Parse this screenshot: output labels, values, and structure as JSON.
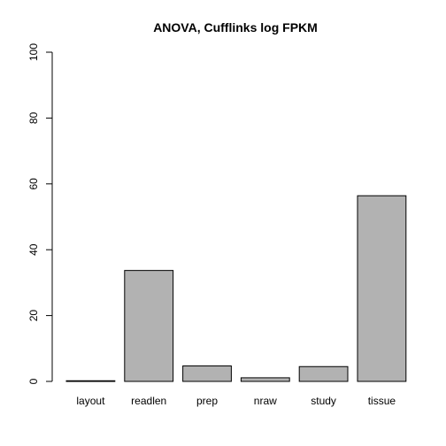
{
  "chart_data": {
    "type": "bar",
    "title": "ANOVA, Cufflinks log FPKM",
    "xlabel": "",
    "ylabel": "",
    "categories": [
      "layout",
      "readlen",
      "prep",
      "nraw",
      "study",
      "tissue"
    ],
    "values": [
      0.2,
      33.7,
      4.7,
      1.1,
      4.5,
      56.4
    ],
    "ylim": [
      0,
      100
    ],
    "yticks": [
      0,
      20,
      40,
      60,
      80,
      100
    ],
    "grid": false,
    "legend": "none",
    "bar_color": "#b2b2b2",
    "bar_border_color": "#000000"
  }
}
